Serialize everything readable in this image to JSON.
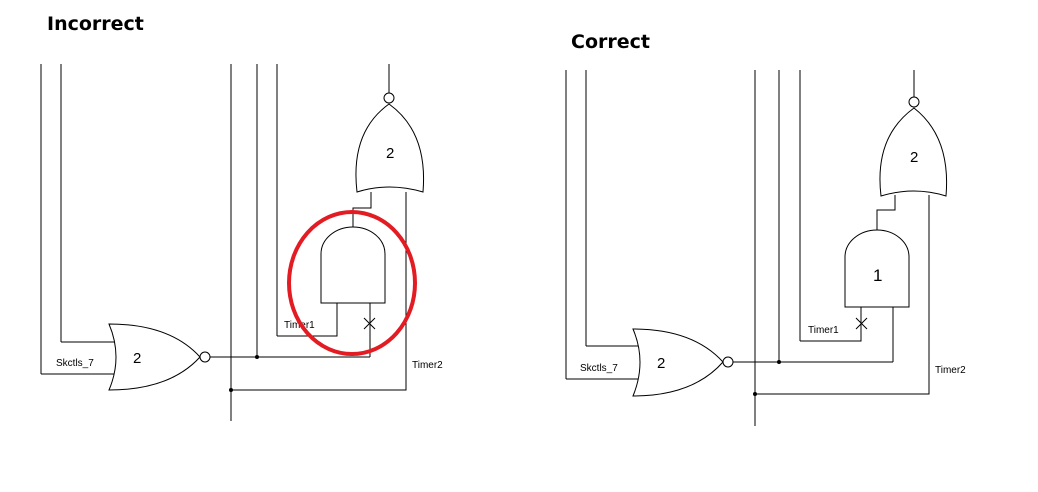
{
  "titles": {
    "left": "Incorrect",
    "right": "Correct"
  },
  "left_diagram": {
    "nor_gate_label": "2",
    "or_gate_label": "2",
    "and_gate_label": "",
    "signal_skctls": "Skctls_7",
    "signal_timer1": "Timer1",
    "signal_timer2": "Timer2",
    "highlight_color": "#e31b23"
  },
  "right_diagram": {
    "nor_gate_label": "2",
    "or_gate_label": "2",
    "and_gate_label": "1",
    "signal_skctls": "Skctls_7",
    "signal_timer1": "Timer1",
    "signal_timer2": "Timer2"
  }
}
